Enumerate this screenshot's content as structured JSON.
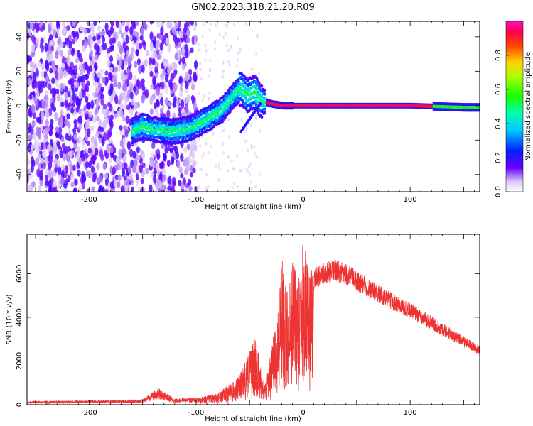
{
  "title": "GN02.2023.318.21.20.R09",
  "chart_data": [
    {
      "type": "heatmap",
      "xlabel": "Height of straight line (km)",
      "ylabel": "Frequency (Hz)",
      "xlim": [
        -258,
        165
      ],
      "ylim": [
        -50,
        49
      ],
      "x_ticks": [
        -200,
        -100,
        0,
        100
      ],
      "y_ticks": [
        -40,
        -20,
        0,
        20,
        40
      ],
      "colorbar": {
        "label": "Normalized spectral amplitude",
        "ticks": [
          "0.0",
          "0.2",
          "0.4",
          "0.6",
          "0.8"
        ],
        "range": [
          0,
          1
        ]
      },
      "ridge": {
        "description_points_x": [
          -160,
          -150,
          -140,
          -120,
          -105,
          -90,
          -75,
          -62,
          -58,
          -52,
          -45,
          -40,
          -30,
          -20,
          -10,
          0,
          50,
          100,
          150,
          165
        ],
        "description_points_y": [
          -15,
          -12,
          -14,
          -15,
          -13,
          -8,
          -2,
          8,
          10,
          6,
          8,
          3,
          1,
          0,
          0,
          0,
          0,
          0,
          -1,
          -1
        ]
      }
    },
    {
      "type": "line",
      "xlabel": "Height of straight line (km)",
      "ylabel": "SNR (10 * v/v)",
      "xlim": [
        -258,
        165
      ],
      "ylim": [
        0,
        7800
      ],
      "x_ticks": [
        -200,
        -100,
        0,
        100
      ],
      "y_ticks": [
        0,
        2000,
        4000,
        6000
      ],
      "color": "#ee3333",
      "envelope_x": [
        -258,
        -200,
        -150,
        -135,
        -120,
        -100,
        -80,
        -60,
        -45,
        -35,
        -25,
        -20,
        -15,
        -10,
        -5,
        0,
        5,
        10,
        20,
        30,
        40,
        60,
        80,
        100,
        120,
        140,
        165
      ],
      "envelope_y": [
        150,
        180,
        220,
        700,
        250,
        300,
        500,
        1200,
        3000,
        900,
        3800,
        6500,
        5000,
        6800,
        5500,
        7600,
        5800,
        6000,
        6300,
        6400,
        6200,
        5600,
        5000,
        4500,
        3900,
        3300,
        2600
      ]
    }
  ]
}
